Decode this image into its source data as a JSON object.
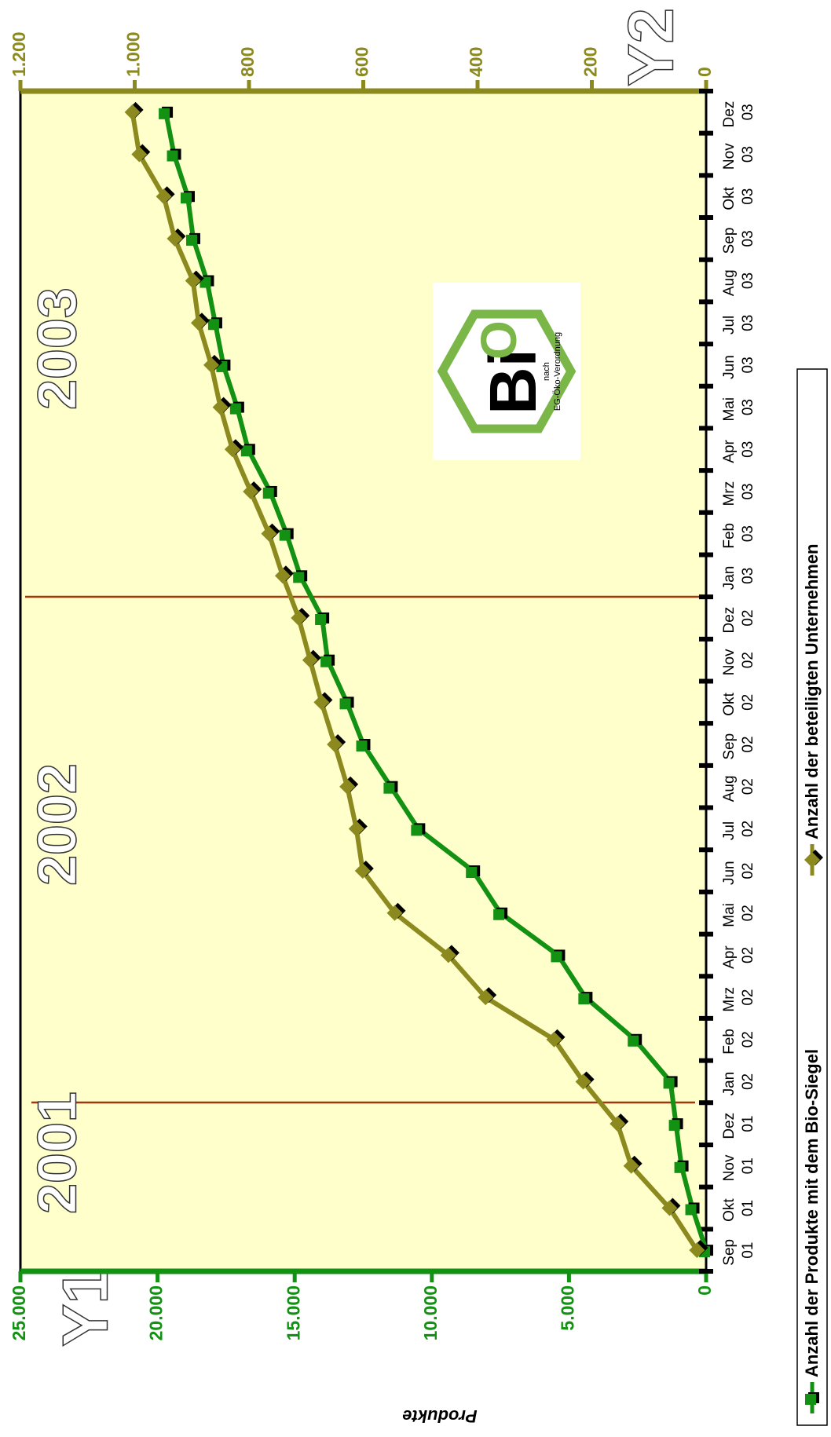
{
  "chart_data": {
    "type": "line",
    "y_label": "Produkte",
    "categories": [
      "Sep 01",
      "Okt 01",
      "Nov 01",
      "Dez 01",
      "Jan 02",
      "Feb 02",
      "Mrz 02",
      "Apr 02",
      "Mai 02",
      "Jun 02",
      "Jul 02",
      "Aug 02",
      "Sep 02",
      "Okt 02",
      "Nov 02",
      "Dez 02",
      "Jan 03",
      "Feb 03",
      "Mrz 03",
      "Apr 03",
      "Mai 03",
      "Jun 03",
      "Jul 03",
      "Aug 03",
      "Sep 03",
      "Okt 03",
      "Nov 03",
      "Dez 03"
    ],
    "series": [
      {
        "name": "Anzahl der Produkte mit dem Bio-Siegel",
        "color": "#129112",
        "marker": "square",
        "values": [
          0,
          500,
          900,
          1100,
          1300,
          2600,
          4400,
          5400,
          7500,
          8500,
          10500,
          11500,
          12500,
          13100,
          13800,
          14000,
          14800,
          15300,
          15900,
          16700,
          17100,
          17600,
          17900,
          18200,
          18700,
          18900,
          19400,
          19700
        ]
      },
      {
        "name": "Anzahl der beteiligten Unternehmen",
        "color": "#8c8a1e",
        "marker": "diamond",
        "axis": "y2",
        "values": [
          16,
          64,
          131,
          155,
          215,
          266,
          386,
          451,
          545,
          601,
          612,
          628,
          650,
          673,
          693,
          713,
          741,
          765,
          797,
          829,
          850,
          866,
          888,
          898,
          930,
          949,
          992,
          1004
        ]
      }
    ],
    "ylim": [
      0,
      25000
    ],
    "yticks": [
      0,
      {
        "value": 5000,
        "label": "5.000"
      },
      {
        "value": 10000,
        "label": "10.000"
      },
      {
        "value": 15000,
        "label": "15.000"
      },
      {
        "value": 20000,
        "label": "20.000"
      },
      {
        "value": 25000,
        "label": "25.000"
      }
    ],
    "y2lim": [
      0,
      1200
    ],
    "y2ticks": [
      0,
      200,
      400,
      600,
      800,
      {
        "value": 1000,
        "label": "1.000"
      },
      {
        "value": 1200,
        "label": "1.200"
      }
    ],
    "annotations": [
      "2001",
      "2002",
      "2003",
      "Y1",
      "Y2"
    ],
    "logo_text": [
      "Bi",
      "O",
      "nach",
      "EG-Öko-Verordnung"
    ]
  }
}
